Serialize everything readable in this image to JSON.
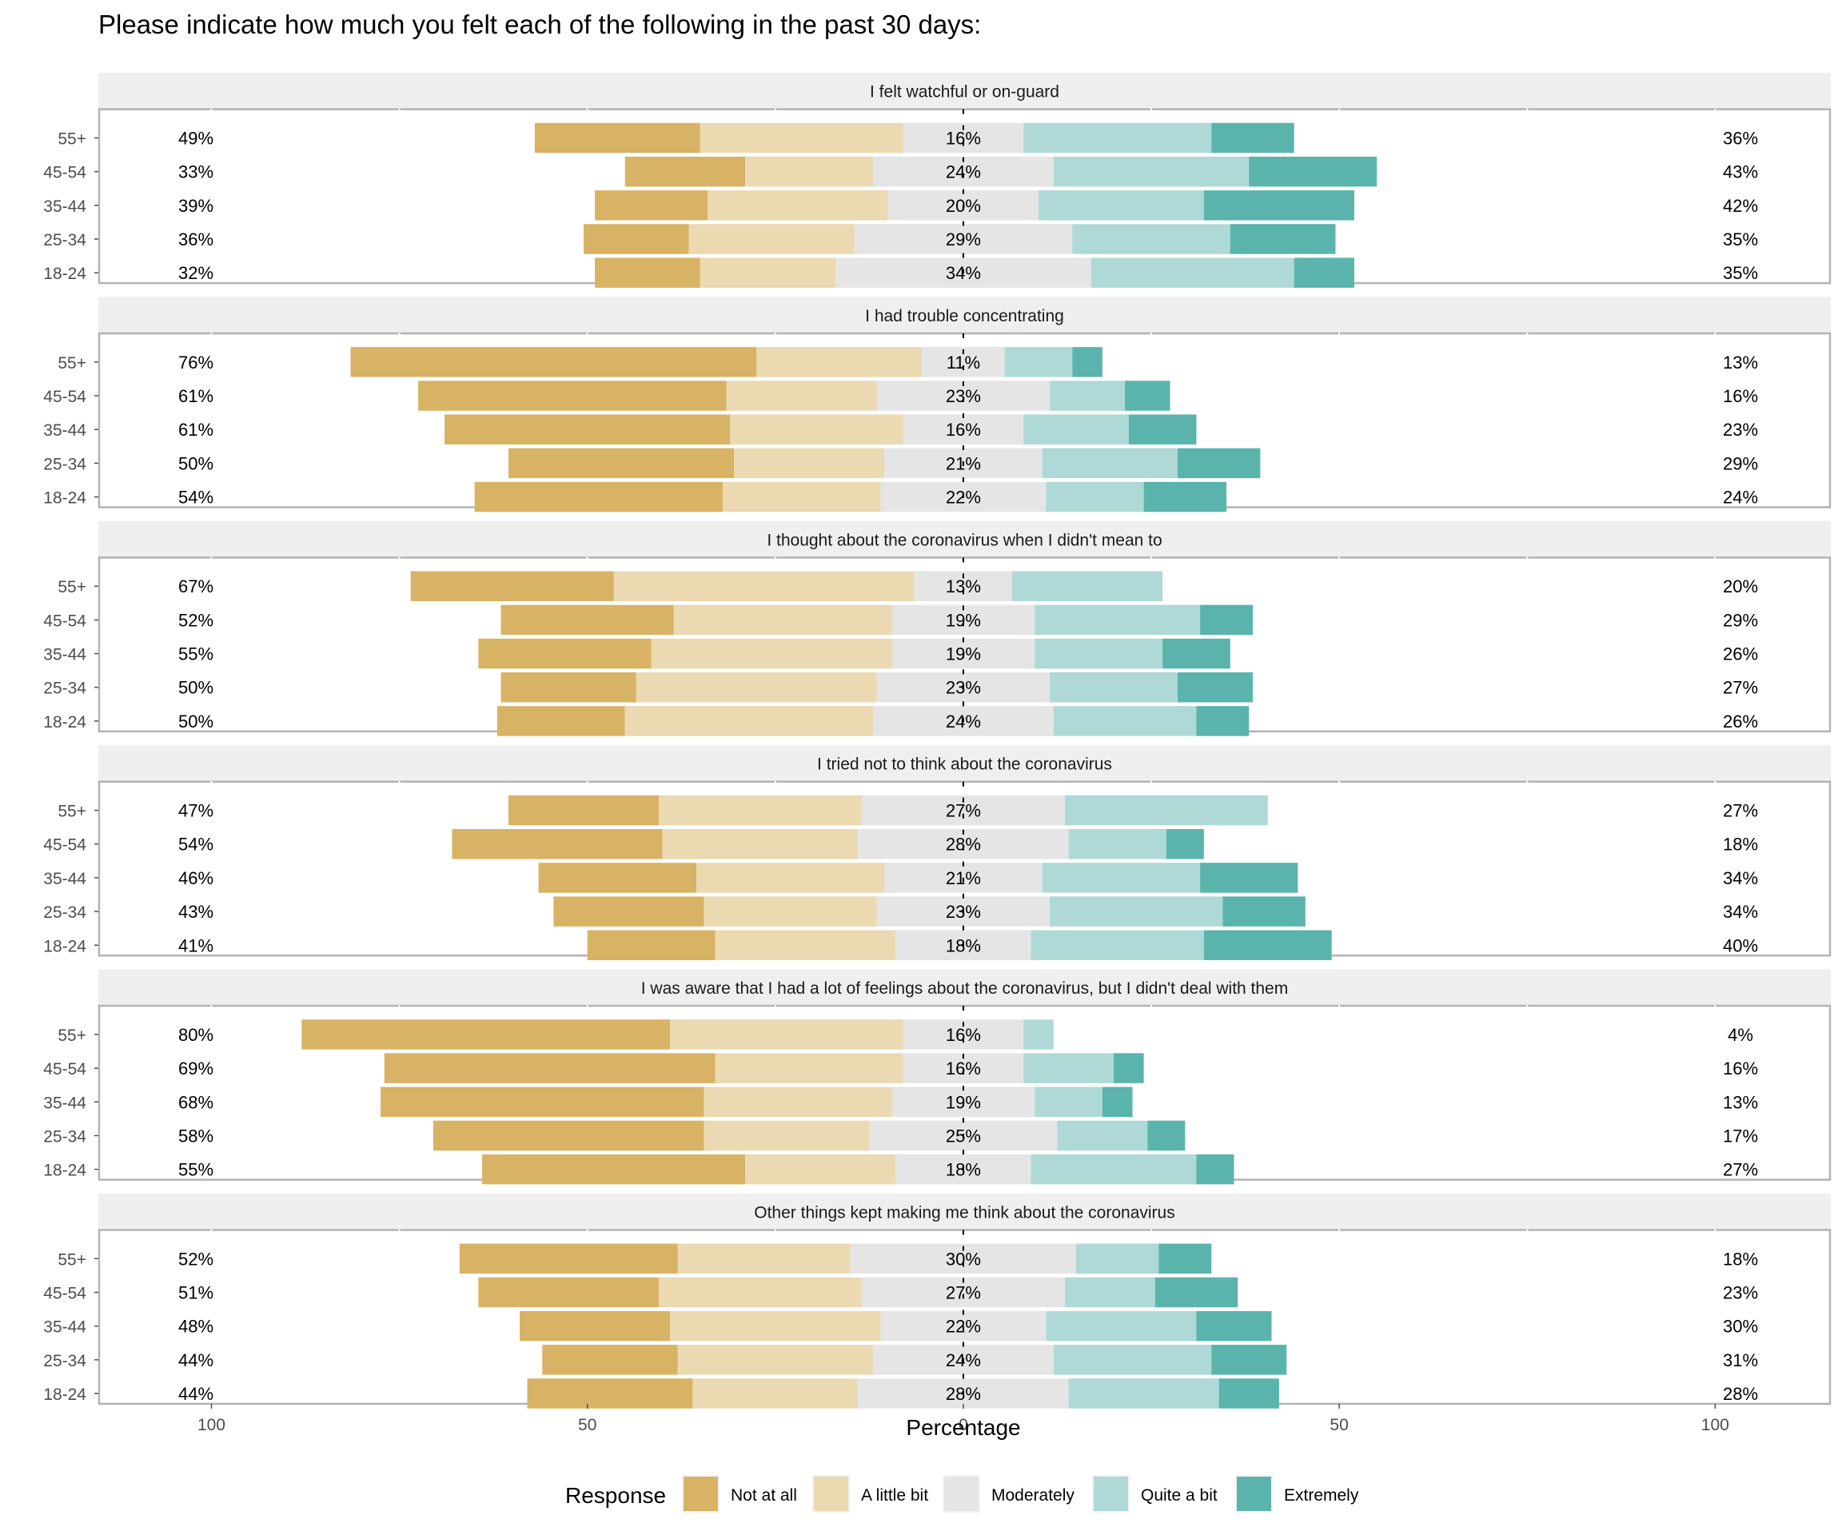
{
  "chart_data": {
    "type": "bar",
    "orientation": "horizontal-diverging-stacked",
    "title": "Please indicate how much you felt each of the following in the past 30 days:",
    "xlabel": "Percentage",
    "ylabel": "",
    "xlim": [
      -100,
      100
    ],
    "x_ticks": [
      -100,
      -50,
      0,
      50,
      100
    ],
    "x_tick_labels": [
      "100",
      "50",
      "0",
      "50",
      "100"
    ],
    "categories": [
      "55+",
      "45-54",
      "35-44",
      "25-34",
      "18-24"
    ],
    "legend": {
      "title": "Response",
      "position": "bottom",
      "items": [
        {
          "label": "Not at all",
          "color": "#D8B365"
        },
        {
          "label": "A little bit",
          "color": "#EBD9B2"
        },
        {
          "label": "Moderately",
          "color": "#E5E5E5"
        },
        {
          "label": "Quite a bit",
          "color": "#AED9D6"
        },
        {
          "label": "Extremely",
          "color": "#5AB4AC"
        }
      ]
    },
    "panels": [
      {
        "title": "I felt watchful or on-guard",
        "rows": [
          {
            "group": "55+",
            "values": [
              22,
              27,
              16,
              25,
              11
            ],
            "left_label": "49%",
            "mid_label": "16%",
            "right_label": "36%"
          },
          {
            "group": "45-54",
            "values": [
              16,
              17,
              24,
              26,
              17
            ],
            "left_label": "33%",
            "mid_label": "24%",
            "right_label": "43%"
          },
          {
            "group": "35-44",
            "values": [
              15,
              24,
              20,
              22,
              20
            ],
            "left_label": "39%",
            "mid_label": "20%",
            "right_label": "42%"
          },
          {
            "group": "25-34",
            "values": [
              14,
              22,
              29,
              21,
              14
            ],
            "left_label": "36%",
            "mid_label": "29%",
            "right_label": "35%"
          },
          {
            "group": "18-24",
            "values": [
              14,
              18,
              34,
              27,
              8
            ],
            "left_label": "32%",
            "mid_label": "34%",
            "right_label": "35%"
          }
        ]
      },
      {
        "title": "I had trouble concentrating",
        "rows": [
          {
            "group": "55+",
            "values": [
              54,
              22,
              11,
              9,
              4
            ],
            "left_label": "76%",
            "mid_label": "11%",
            "right_label": "13%"
          },
          {
            "group": "45-54",
            "values": [
              41,
              20,
              23,
              10,
              6
            ],
            "left_label": "61%",
            "mid_label": "23%",
            "right_label": "16%"
          },
          {
            "group": "35-44",
            "values": [
              38,
              23,
              16,
              14,
              9
            ],
            "left_label": "61%",
            "mid_label": "16%",
            "right_label": "23%"
          },
          {
            "group": "25-34",
            "values": [
              30,
              20,
              21,
              18,
              11
            ],
            "left_label": "50%",
            "mid_label": "21%",
            "right_label": "29%"
          },
          {
            "group": "18-24",
            "values": [
              33,
              21,
              22,
              13,
              11
            ],
            "left_label": "54%",
            "mid_label": "22%",
            "right_label": "24%"
          }
        ]
      },
      {
        "title": "I thought about the coronavirus when I didn't mean to",
        "rows": [
          {
            "group": "55+",
            "values": [
              27,
              40,
              13,
              20,
              0
            ],
            "left_label": "67%",
            "mid_label": "13%",
            "right_label": "20%"
          },
          {
            "group": "45-54",
            "values": [
              23,
              29,
              19,
              22,
              7
            ],
            "left_label": "52%",
            "mid_label": "19%",
            "right_label": "29%"
          },
          {
            "group": "35-44",
            "values": [
              23,
              32,
              19,
              17,
              9
            ],
            "left_label": "55%",
            "mid_label": "19%",
            "right_label": "26%"
          },
          {
            "group": "25-34",
            "values": [
              18,
              32,
              23,
              17,
              10
            ],
            "left_label": "50%",
            "mid_label": "23%",
            "right_label": "27%"
          },
          {
            "group": "18-24",
            "values": [
              17,
              33,
              24,
              19,
              7
            ],
            "left_label": "50%",
            "mid_label": "24%",
            "right_label": "26%"
          }
        ]
      },
      {
        "title": "I tried not to think about the coronavirus",
        "rows": [
          {
            "group": "55+",
            "values": [
              20,
              27,
              27,
              27,
              0
            ],
            "left_label": "47%",
            "mid_label": "27%",
            "right_label": "27%"
          },
          {
            "group": "45-54",
            "values": [
              28,
              26,
              28,
              13,
              5
            ],
            "left_label": "54%",
            "mid_label": "28%",
            "right_label": "18%"
          },
          {
            "group": "35-44",
            "values": [
              21,
              25,
              21,
              21,
              13
            ],
            "left_label": "46%",
            "mid_label": "21%",
            "right_label": "34%"
          },
          {
            "group": "25-34",
            "values": [
              20,
              23,
              23,
              23,
              11
            ],
            "left_label": "43%",
            "mid_label": "23%",
            "right_label": "34%"
          },
          {
            "group": "18-24",
            "values": [
              17,
              24,
              18,
              23,
              17
            ],
            "left_label": "41%",
            "mid_label": "18%",
            "right_label": "40%"
          }
        ]
      },
      {
        "title": "I was aware that I had a lot of feelings about the coronavirus, but I didn't deal with them",
        "rows": [
          {
            "group": "55+",
            "values": [
              49,
              31,
              16,
              4,
              0
            ],
            "left_label": "80%",
            "mid_label": "16%",
            "right_label": "4%"
          },
          {
            "group": "45-54",
            "values": [
              44,
              25,
              16,
              12,
              4
            ],
            "left_label": "69%",
            "mid_label": "16%",
            "right_label": "16%"
          },
          {
            "group": "35-44",
            "values": [
              43,
              25,
              19,
              9,
              4
            ],
            "left_label": "68%",
            "mid_label": "19%",
            "right_label": "13%"
          },
          {
            "group": "25-34",
            "values": [
              36,
              22,
              25,
              12,
              5
            ],
            "left_label": "58%",
            "mid_label": "25%",
            "right_label": "17%"
          },
          {
            "group": "18-24",
            "values": [
              35,
              20,
              18,
              22,
              5
            ],
            "left_label": "55%",
            "mid_label": "18%",
            "right_label": "27%"
          }
        ]
      },
      {
        "title": "Other things kept making me think about the coronavirus",
        "rows": [
          {
            "group": "55+",
            "values": [
              29,
              23,
              30,
              11,
              7
            ],
            "left_label": "52%",
            "mid_label": "30%",
            "right_label": "18%"
          },
          {
            "group": "45-54",
            "values": [
              24,
              27,
              27,
              12,
              11
            ],
            "left_label": "51%",
            "mid_label": "27%",
            "right_label": "23%"
          },
          {
            "group": "35-44",
            "values": [
              20,
              28,
              22,
              20,
              10
            ],
            "left_label": "48%",
            "mid_label": "22%",
            "right_label": "30%"
          },
          {
            "group": "25-34",
            "values": [
              18,
              26,
              24,
              21,
              10
            ],
            "left_label": "44%",
            "mid_label": "24%",
            "right_label": "31%"
          },
          {
            "group": "18-24",
            "values": [
              22,
              22,
              28,
              20,
              8
            ],
            "left_label": "44%",
            "mid_label": "28%",
            "right_label": "28%"
          }
        ]
      }
    ]
  },
  "colors": {
    "strip_background": "#EFEFEF",
    "panel_border": "#B3B3B3",
    "axis_text": "#4D4D4D"
  }
}
